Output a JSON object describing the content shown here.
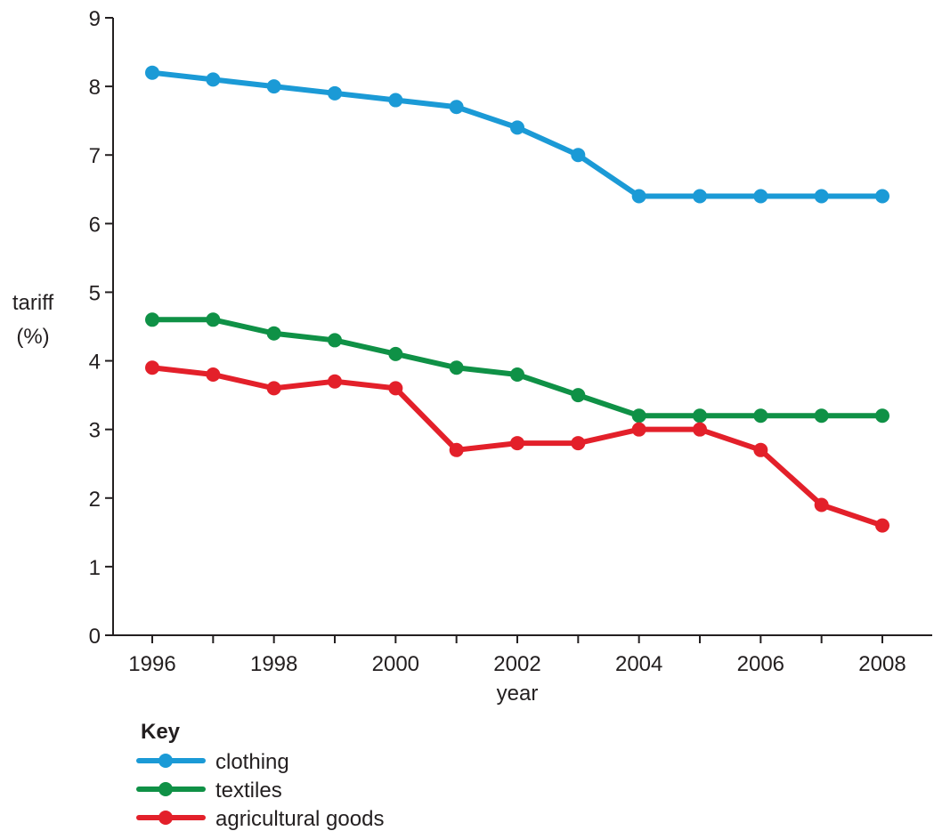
{
  "chart_data": {
    "type": "line",
    "title": "",
    "xlabel": "year",
    "ylabel": [
      "tariff",
      "(%)"
    ],
    "x": [
      1996,
      1997,
      1998,
      1999,
      2000,
      2001,
      2002,
      2003,
      2004,
      2005,
      2006,
      2007,
      2008
    ],
    "x_tick_labels": [
      "1996",
      "1998",
      "2000",
      "2002",
      "2004",
      "2006",
      "2008"
    ],
    "y_tick_labels": [
      "0",
      "1",
      "2",
      "3",
      "4",
      "5",
      "6",
      "7",
      "8",
      "9"
    ],
    "xlim": [
      1996,
      2008
    ],
    "ylim": [
      0,
      9
    ],
    "grid": false,
    "legend_title": "Key",
    "legend_position": "bottom-left",
    "series": [
      {
        "name": "clothing",
        "color": "#1b9ad6",
        "values": [
          8.2,
          8.1,
          8.0,
          7.9,
          7.8,
          7.7,
          7.4,
          7.0,
          6.4,
          6.4,
          6.4,
          6.4,
          6.4
        ]
      },
      {
        "name": "textiles",
        "color": "#0f9146",
        "values": [
          4.6,
          4.6,
          4.4,
          4.3,
          4.1,
          3.9,
          3.8,
          3.5,
          3.2,
          3.2,
          3.2,
          3.2,
          3.2
        ]
      },
      {
        "name": "agricultural goods",
        "color": "#e3202a",
        "values": [
          3.9,
          3.8,
          3.6,
          3.7,
          3.6,
          2.7,
          2.8,
          2.8,
          3.0,
          3.0,
          2.7,
          1.9,
          1.6
        ]
      }
    ]
  }
}
